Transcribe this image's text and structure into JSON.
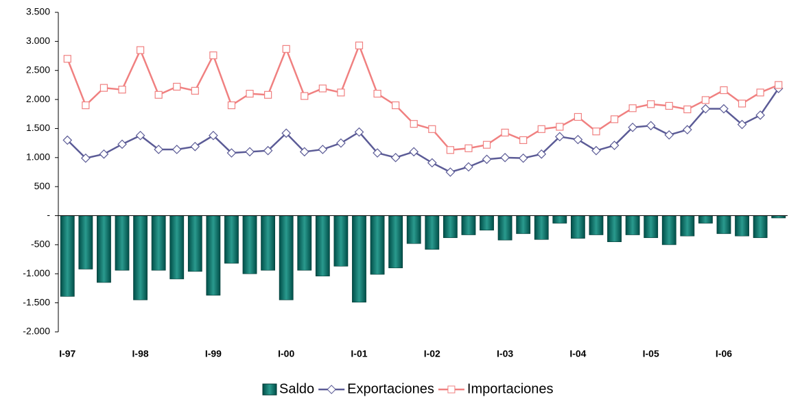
{
  "chart_data": {
    "type": "bar_line",
    "categories": [
      "I-97",
      null,
      null,
      null,
      "I-98",
      null,
      null,
      null,
      "I-99",
      null,
      null,
      null,
      "I-00",
      null,
      null,
      null,
      "I-01",
      null,
      null,
      null,
      "I-02",
      null,
      null,
      null,
      "I-03",
      null,
      null,
      null,
      "I-04",
      null,
      null,
      null,
      "I-05",
      null,
      null,
      null,
      "I-06",
      null,
      null,
      null
    ],
    "series": [
      {
        "name": "Saldo",
        "type": "bar",
        "color": "#006b63",
        "values": [
          -1390,
          -920,
          -1150,
          -940,
          -1450,
          -940,
          -1090,
          -960,
          -1370,
          -820,
          -1000,
          -940,
          -1450,
          -940,
          -1040,
          -870,
          -1490,
          -1010,
          -900,
          -480,
          -580,
          -380,
          -330,
          -250,
          -420,
          -310,
          -410,
          -130,
          -390,
          -330,
          -450,
          -330,
          -380,
          -500,
          -350,
          -130,
          -310,
          -350,
          -380,
          -40
        ]
      },
      {
        "name": "Exportaciones",
        "type": "line",
        "marker": "diamond",
        "color": "#5b5b96",
        "values": [
          1300,
          990,
          1060,
          1230,
          1380,
          1140,
          1140,
          1190,
          1380,
          1080,
          1100,
          1120,
          1420,
          1100,
          1140,
          1250,
          1440,
          1080,
          1000,
          1100,
          910,
          750,
          840,
          970,
          1000,
          990,
          1060,
          1360,
          1310,
          1120,
          1210,
          1520,
          1550,
          1390,
          1480,
          1840,
          1840,
          1570,
          1730,
          2190
        ]
      },
      {
        "name": "Importaciones",
        "type": "line",
        "marker": "square",
        "color": "#f08080",
        "values": [
          2700,
          1900,
          2200,
          2170,
          2850,
          2080,
          2220,
          2150,
          2760,
          1900,
          2100,
          2080,
          2870,
          2060,
          2190,
          2120,
          2930,
          2100,
          1900,
          1580,
          1490,
          1130,
          1160,
          1220,
          1430,
          1300,
          1490,
          1530,
          1700,
          1450,
          1660,
          1850,
          1920,
          1890,
          1830,
          1990,
          2160,
          1930,
          2120,
          2250
        ]
      }
    ],
    "ylim": [
      -2000,
      3500
    ],
    "yticks": [
      {
        "value": -2000,
        "label": "-2.000"
      },
      {
        "value": -1500,
        "label": "-1.500"
      },
      {
        "value": -1000,
        "label": "-1.000"
      },
      -500,
      {
        "value": 0,
        "label": "-"
      },
      500,
      {
        "value": 1000,
        "label": "1.000"
      },
      {
        "value": 1500,
        "label": "1.500"
      },
      {
        "value": 2000,
        "label": "2.000"
      },
      {
        "value": 2500,
        "label": "2.500"
      },
      {
        "value": 3000,
        "label": "3.000"
      },
      {
        "value": 3500,
        "label": "3.500"
      }
    ],
    "legend": "bottom"
  }
}
